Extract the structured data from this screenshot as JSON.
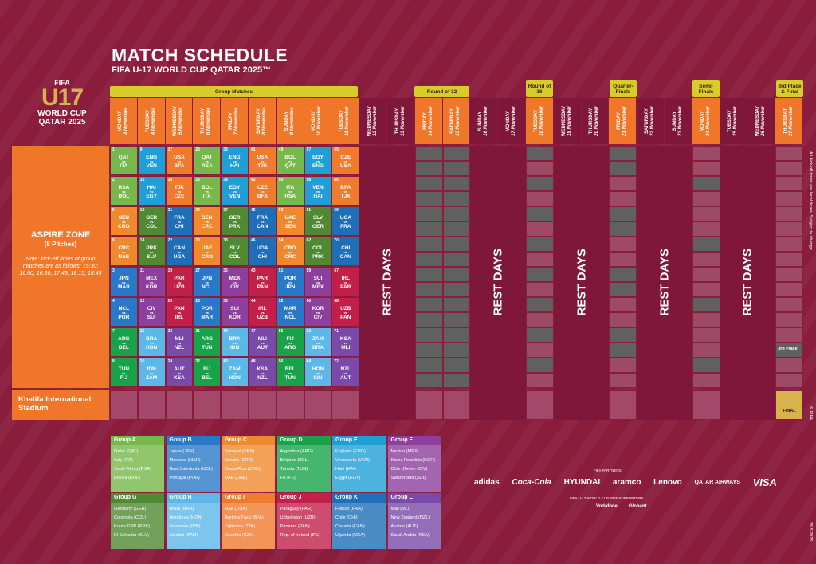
{
  "header": {
    "title": "MATCH SCHEDULE",
    "subtitle": "FIFA U-17 WORLD CUP QATAR 2025™"
  },
  "logo": {
    "fifa": "FIFA",
    "u17": "U17",
    "world_cup": "WORLD CUP",
    "qatar": "QATAR 2025"
  },
  "stages": {
    "group": "Group Matches",
    "r32": "Round of 32",
    "r16": "Round of 16",
    "qf": "Quarter-Finals",
    "sf": "Semi-Finals",
    "final": "3rd Place & Final"
  },
  "days": [
    {
      "d": "MONDAY",
      "n": "3 November"
    },
    {
      "d": "TUESDAY",
      "n": "4 November"
    },
    {
      "d": "WEDNESDAY",
      "n": "5 November"
    },
    {
      "d": "THURSDAY",
      "n": "6 November"
    },
    {
      "d": "FRIDAY",
      "n": "7 November"
    },
    {
      "d": "SATURDAY",
      "n": "8 November"
    },
    {
      "d": "SUNDAY",
      "n": "9 November"
    },
    {
      "d": "MONDAY",
      "n": "10 November"
    },
    {
      "d": "TUESDAY",
      "n": "11 November"
    },
    {
      "d": "WEDNESDAY",
      "n": "12 November"
    },
    {
      "d": "THURSDAY",
      "n": "13 November"
    },
    {
      "d": "FRIDAY",
      "n": "14 November"
    },
    {
      "d": "SATURDAY",
      "n": "15 November"
    },
    {
      "d": "SUNDAY",
      "n": "16 November"
    },
    {
      "d": "MONDAY",
      "n": "17 November"
    },
    {
      "d": "TUESDAY",
      "n": "18 November"
    },
    {
      "d": "WEDNESDAY",
      "n": "19 November"
    },
    {
      "d": "THURSDAY",
      "n": "20 November"
    },
    {
      "d": "FRIDAY",
      "n": "21 November"
    },
    {
      "d": "SATURDAY",
      "n": "22 November"
    },
    {
      "d": "SUNDAY",
      "n": "23 November"
    },
    {
      "d": "MONDAY",
      "n": "24 November"
    },
    {
      "d": "TUESDAY",
      "n": "25 November"
    },
    {
      "d": "WEDNESDAY",
      "n": "26 November"
    },
    {
      "d": "THURSDAY",
      "n": "27 November"
    }
  ],
  "zone": {
    "title": "ASPIRE ZONE",
    "pitches": "(8 Pitches)",
    "note": "Note: kick-off times of group matches are as follows: 15:30; 16:00; 16:30; 17:45; 18:15; 18:45"
  },
  "khalifa": "Khalifa International Stadium",
  "rest_days": "REST DAYS",
  "third_place": "3rd Place",
  "final": "FINAL",
  "matches": [
    [
      {
        "n": "1",
        "h": "QAT",
        "a": "ITA",
        "g": "A"
      },
      {
        "n": "9",
        "h": "ENG",
        "a": "VEN",
        "g": "E"
      },
      {
        "n": "17",
        "h": "USA",
        "a": "BFA",
        "g": "I"
      },
      {
        "n": "25",
        "h": "QAT",
        "a": "RSA",
        "g": "A"
      },
      {
        "n": "33",
        "h": "ENG",
        "a": "HAI",
        "g": "E"
      },
      {
        "n": "41",
        "h": "USA",
        "a": "TJK",
        "g": "I"
      },
      {
        "n": "49",
        "h": "BOL",
        "a": "QAT",
        "g": "A"
      },
      {
        "n": "57",
        "h": "EGY",
        "a": "ENG",
        "g": "E"
      },
      {
        "n": "65",
        "h": "CZE",
        "a": "USA",
        "g": "I"
      }
    ],
    [
      {
        "n": "2",
        "h": "RSA",
        "a": "BOL",
        "g": "A"
      },
      {
        "n": "10",
        "h": "HAI",
        "a": "EGY",
        "g": "E"
      },
      {
        "n": "18",
        "h": "TJK",
        "a": "CZE",
        "g": "I"
      },
      {
        "n": "26",
        "h": "BOL",
        "a": "ITA",
        "g": "A"
      },
      {
        "n": "34",
        "h": "EGY",
        "a": "VEN",
        "g": "E"
      },
      {
        "n": "42",
        "h": "CZE",
        "a": "BFA",
        "g": "I"
      },
      {
        "n": "50",
        "h": "ITA",
        "a": "RSA",
        "g": "A"
      },
      {
        "n": "58",
        "h": "VEN",
        "a": "HAI",
        "g": "E"
      },
      {
        "n": "66",
        "h": "BFA",
        "a": "TJK",
        "g": "I"
      }
    ],
    [
      {
        "n": "5",
        "h": "SEN",
        "a": "CRO",
        "g": "C"
      },
      {
        "n": "13",
        "h": "GER",
        "a": "COL",
        "g": "G"
      },
      {
        "n": "21",
        "h": "FRA",
        "a": "CHI",
        "g": "K"
      },
      {
        "n": "29",
        "h": "SEN",
        "a": "CRC",
        "g": "C"
      },
      {
        "n": "37",
        "h": "GER",
        "a": "PRK",
        "g": "G"
      },
      {
        "n": "45",
        "h": "FRA",
        "a": "CAN",
        "g": "K"
      },
      {
        "n": "53",
        "h": "UAE",
        "a": "SEN",
        "g": "C"
      },
      {
        "n": "61",
        "h": "SLV",
        "a": "GER",
        "g": "G"
      },
      {
        "n": "69",
        "h": "UGA",
        "a": "FRA",
        "g": "K"
      }
    ],
    [
      {
        "n": "6",
        "h": "CRC",
        "a": "UAE",
        "g": "C"
      },
      {
        "n": "14",
        "h": "PRK",
        "a": "SLV",
        "g": "G"
      },
      {
        "n": "22",
        "h": "CAN",
        "a": "UGA",
        "g": "K"
      },
      {
        "n": "30",
        "h": "UAE",
        "a": "CRO",
        "g": "C"
      },
      {
        "n": "38",
        "h": "SLV",
        "a": "COL",
        "g": "G"
      },
      {
        "n": "46",
        "h": "UGA",
        "a": "CHI",
        "g": "K"
      },
      {
        "n": "54",
        "h": "CRO",
        "a": "CRC",
        "g": "C"
      },
      {
        "n": "62",
        "h": "COL",
        "a": "PRK",
        "g": "G"
      },
      {
        "n": "70",
        "h": "CHI",
        "a": "CAN",
        "g": "K"
      }
    ],
    [
      {
        "n": "3",
        "h": "JPN",
        "a": "MAR",
        "g": "B"
      },
      {
        "n": "11",
        "h": "MEX",
        "a": "KOR",
        "g": "F"
      },
      {
        "n": "19",
        "h": "PAR",
        "a": "UZB",
        "g": "J"
      },
      {
        "n": "27",
        "h": "JPN",
        "a": "NCL",
        "g": "B"
      },
      {
        "n": "35",
        "h": "MEX",
        "a": "CIV",
        "g": "F"
      },
      {
        "n": "43",
        "h": "PAR",
        "a": "PAN",
        "g": "J"
      },
      {
        "n": "51",
        "h": "POR",
        "a": "JPN",
        "g": "B"
      },
      {
        "n": "59",
        "h": "SUI",
        "a": "MEX",
        "g": "F"
      },
      {
        "n": "67",
        "h": "IRL",
        "a": "PAR",
        "g": "J"
      }
    ],
    [
      {
        "n": "4",
        "h": "NCL",
        "a": "POR",
        "g": "B"
      },
      {
        "n": "12",
        "h": "CIV",
        "a": "SUI",
        "g": "F"
      },
      {
        "n": "20",
        "h": "PAN",
        "a": "IRL",
        "g": "J"
      },
      {
        "n": "28",
        "h": "POR",
        "a": "MAR",
        "g": "B"
      },
      {
        "n": "36",
        "h": "SUI",
        "a": "KOR",
        "g": "F"
      },
      {
        "n": "44",
        "h": "IRL",
        "a": "UZB",
        "g": "J"
      },
      {
        "n": "52",
        "h": "MAR",
        "a": "NCL",
        "g": "B"
      },
      {
        "n": "60",
        "h": "KOR",
        "a": "CIV",
        "g": "F"
      },
      {
        "n": "68",
        "h": "UZB",
        "a": "PAN",
        "g": "J"
      }
    ],
    [
      {
        "n": "7",
        "h": "ARG",
        "a": "BEL",
        "g": "D"
      },
      {
        "n": "15",
        "h": "BRA",
        "a": "HON",
        "g": "H"
      },
      {
        "n": "23",
        "h": "MLI",
        "a": "NZL",
        "g": "L"
      },
      {
        "n": "31",
        "h": "ARG",
        "a": "TUN",
        "g": "D"
      },
      {
        "n": "39",
        "h": "BRA",
        "a": "IDN",
        "g": "H"
      },
      {
        "n": "47",
        "h": "MLI",
        "a": "AUT",
        "g": "L"
      },
      {
        "n": "55",
        "h": "FIJ",
        "a": "ARG",
        "g": "D"
      },
      {
        "n": "63",
        "h": "ZAM",
        "a": "BRA",
        "g": "H"
      },
      {
        "n": "71",
        "h": "KSA",
        "a": "MLI",
        "g": "L"
      }
    ],
    [
      {
        "n": "8",
        "h": "TUN",
        "a": "FIJ",
        "g": "D"
      },
      {
        "n": "16",
        "h": "IDN",
        "a": "ZAM",
        "g": "H"
      },
      {
        "n": "24",
        "h": "AUT",
        "a": "KSA",
        "g": "L"
      },
      {
        "n": "32",
        "h": "FIJ",
        "a": "BEL",
        "g": "D"
      },
      {
        "n": "40",
        "h": "ZAM",
        "a": "HON",
        "g": "H"
      },
      {
        "n": "48",
        "h": "KSA",
        "a": "NZL",
        "g": "L"
      },
      {
        "n": "56",
        "h": "BEL",
        "a": "TUN",
        "g": "D"
      },
      {
        "n": "64",
        "h": "HON",
        "a": "IDN",
        "g": "H"
      },
      {
        "n": "72",
        "h": "NZL",
        "a": "AUT",
        "g": "L"
      }
    ]
  ],
  "groups": [
    {
      "name": "Group A",
      "key": "A",
      "teams": [
        "Qatar (QAT)",
        "Italy (ITA)",
        "South Africa (RSA)",
        "Bolivia (BOL)"
      ]
    },
    {
      "name": "Group B",
      "key": "B",
      "teams": [
        "Japan (JPN)",
        "Morocco (MAR)",
        "New Caledonia (NCL)",
        "Portugal (POR)"
      ]
    },
    {
      "name": "Group C",
      "key": "C",
      "teams": [
        "Senegal (SEN)",
        "Croatia (CRO)",
        "Costa Rica (CRC)",
        "UAE (UAE)"
      ]
    },
    {
      "name": "Group D",
      "key": "D",
      "teams": [
        "Argentina (ARG)",
        "Belgium (BEL)",
        "Tunisia (TUN)",
        "Fiji (FIJ)"
      ]
    },
    {
      "name": "Group E",
      "key": "E",
      "teams": [
        "England (ENG)",
        "Venezuela (VEN)",
        "Haiti (HAI)",
        "Egypt (EGY)"
      ]
    },
    {
      "name": "Group F",
      "key": "F",
      "teams": [
        "Mexico (MEX)",
        "Korea Republic (KOR)",
        "Côte d'Ivoire (CIV)",
        "Switzerland (SUI)"
      ]
    },
    {
      "name": "Group G",
      "key": "G",
      "teams": [
        "Germany (GER)",
        "Colombia (COL)",
        "Korea DPR (PRK)",
        "El Salvador (SLV)"
      ]
    },
    {
      "name": "Group H",
      "key": "H",
      "teams": [
        "Brazil (BRA)",
        "Honduras (HON)",
        "Indonesia (IDN)",
        "Zambia (ZAM)"
      ]
    },
    {
      "name": "Group I",
      "key": "I",
      "teams": [
        "USA (USA)",
        "Burkina Faso (BFA)",
        "Tajikistan (TJK)",
        "Czechia (CZE)"
      ]
    },
    {
      "name": "Group J",
      "key": "J",
      "teams": [
        "Paraguay (PAR)",
        "Uzbekistan (UZB)",
        "Panama (PAN)",
        "Rep. of Ireland (IRL)"
      ]
    },
    {
      "name": "Group K",
      "key": "K",
      "teams": [
        "France (FRA)",
        "Chile (CHI)",
        "Canada (CAN)",
        "Uganda (UGA)"
      ]
    },
    {
      "name": "Group L",
      "key": "L",
      "teams": [
        "Mali (MLI)",
        "New Zealand (NZL)",
        "Austria (AUT)",
        "Saudi Arabia (KSA)"
      ]
    }
  ],
  "sponsors": {
    "partners_label": "FIFA PARTNERS",
    "supporters_label": "FIFA U-17 WORLD CUP 2025 SUPPORTERS",
    "partners": [
      "adidas",
      "Coca-Cola",
      "HYUNDAI",
      "aramco",
      "Lenovo",
      "QATAR AIRWAYS",
      "VISA"
    ],
    "supporters": [
      "Vodafone",
      "Globant"
    ]
  },
  "side_note": "All kick-off times are local times. Subject to change.",
  "copyright": "© FIFA",
  "date": "26.5.2025"
}
